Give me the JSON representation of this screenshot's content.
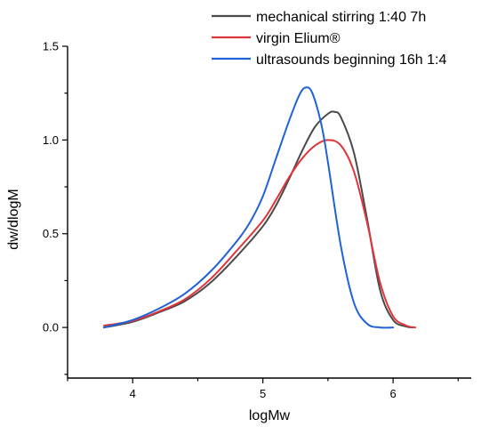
{
  "chart_data": {
    "type": "line",
    "title": "",
    "xlabel": "logMw",
    "ylabel": "dw/dlogM",
    "xlim": [
      3.5,
      6.6
    ],
    "ylim": [
      -0.27,
      1.5
    ],
    "xticks": [
      4,
      5,
      6
    ],
    "xtick_labels": [
      "4",
      "5",
      "6"
    ],
    "yticks": [
      0.0,
      0.5,
      1.0,
      1.5
    ],
    "ytick_labels": [
      "0.0",
      "0.5",
      "1.0",
      "1.5"
    ],
    "grid": false,
    "legend_position": "top-right",
    "series": [
      {
        "name": "mechanical stirring 1:40 7h",
        "color": "#4a4a4a",
        "x": [
          3.78,
          4.0,
          4.2,
          4.4,
          4.6,
          4.8,
          5.0,
          5.1,
          5.2,
          5.3,
          5.4,
          5.5,
          5.55,
          5.6,
          5.7,
          5.8,
          5.9,
          6.0,
          6.1,
          6.15
        ],
        "y": [
          0.0,
          0.03,
          0.08,
          0.14,
          0.24,
          0.38,
          0.54,
          0.65,
          0.79,
          0.94,
          1.07,
          1.14,
          1.15,
          1.12,
          0.93,
          0.58,
          0.2,
          0.04,
          0.005,
          0.0
        ]
      },
      {
        "name": "virgin Elium®",
        "color": "#e0353a",
        "x": [
          3.78,
          4.0,
          4.2,
          4.4,
          4.6,
          4.8,
          5.0,
          5.1,
          5.2,
          5.3,
          5.4,
          5.5,
          5.6,
          5.7,
          5.8,
          5.9,
          6.0,
          6.1,
          6.17
        ],
        "y": [
          0.01,
          0.035,
          0.085,
          0.15,
          0.26,
          0.41,
          0.57,
          0.68,
          0.8,
          0.9,
          0.97,
          1.0,
          0.97,
          0.83,
          0.56,
          0.24,
          0.06,
          0.01,
          0.0
        ]
      },
      {
        "name": "ultrasounds beginning 16h 1:4",
        "color": "#1f63d6",
        "x": [
          3.78,
          4.0,
          4.2,
          4.4,
          4.6,
          4.8,
          4.9,
          5.0,
          5.1,
          5.2,
          5.28,
          5.33,
          5.38,
          5.45,
          5.5,
          5.6,
          5.7,
          5.8,
          5.9,
          6.0
        ],
        "y": [
          0.0,
          0.04,
          0.1,
          0.18,
          0.3,
          0.46,
          0.56,
          0.7,
          0.9,
          1.1,
          1.24,
          1.28,
          1.25,
          1.08,
          0.88,
          0.43,
          0.13,
          0.02,
          0.0,
          0.0
        ]
      }
    ]
  }
}
